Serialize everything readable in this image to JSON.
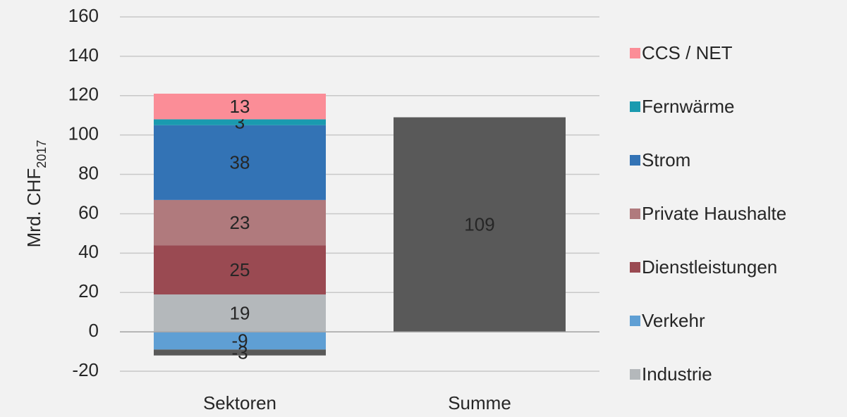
{
  "chart_data": {
    "type": "stacked_bar",
    "ylabel": "Mrd. CHF",
    "ylabel_subscript": "2017",
    "categories": [
      "Sektoren",
      "Summe"
    ],
    "series": [
      {
        "name": "Industrie",
        "color": "#b4b8bb",
        "values": [
          19,
          null
        ]
      },
      {
        "name": "Verkehr",
        "color": "#5f9fd4",
        "values": [
          -9,
          null
        ]
      },
      {
        "name": "Dienstleistungen",
        "color": "#9a4a52",
        "values": [
          25,
          null
        ]
      },
      {
        "name": "Private Haushalte",
        "color": "#b07a7d",
        "values": [
          23,
          null
        ]
      },
      {
        "name": "Strom",
        "color": "#3373b5",
        "values": [
          38,
          null
        ]
      },
      {
        "name": "Fernwärme",
        "color": "#1a9aaf",
        "values": [
          3,
          null
        ]
      },
      {
        "name": "CCS / NET",
        "color": "#fb8d97",
        "values": [
          13,
          null
        ]
      },
      {
        "color": "#595959",
        "values": [
          -3,
          109
        ]
      }
    ],
    "ylim": [
      -20,
      160
    ],
    "yticks": [
      -20,
      0,
      20,
      40,
      60,
      80,
      100,
      120,
      140,
      160
    ],
    "grid": true
  }
}
